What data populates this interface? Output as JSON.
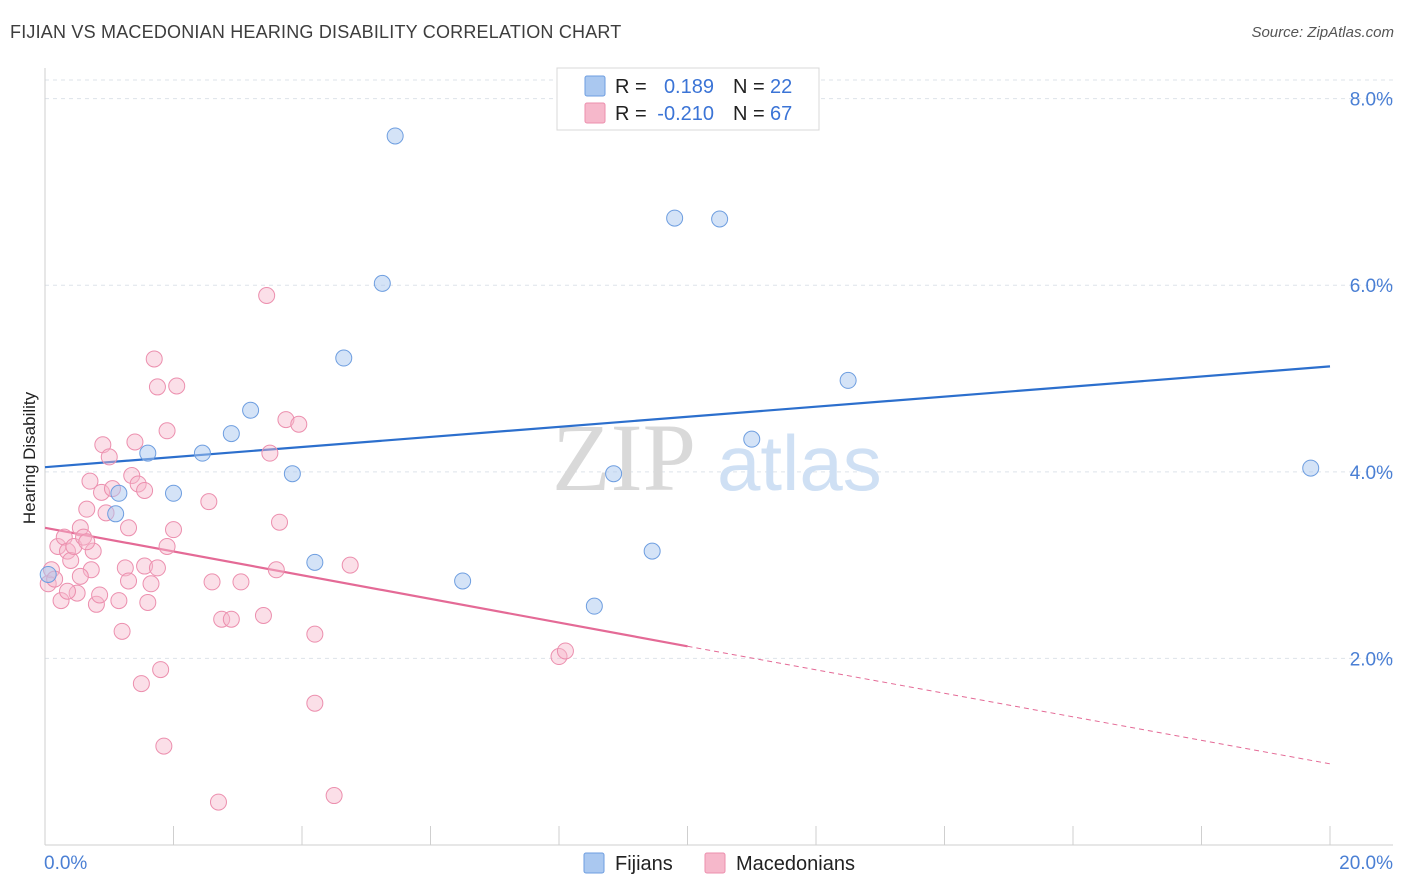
{
  "title": "FIJIAN VS MACEDONIAN HEARING DISABILITY CORRELATION CHART",
  "source": "Source: ZipAtlas.com",
  "watermark": {
    "zip": "ZIP",
    "atlas": "atlas"
  },
  "colors": {
    "fijians_fill": "#aac8f0",
    "fijians_stroke": "#6e9ee0",
    "fijians_line": "#2c6fcd",
    "macedonians_fill": "#f6b8cb",
    "macedonians_stroke": "#ec8fae",
    "macedonians_line": "#e46a96",
    "grid": "#dde3ea",
    "axis_text": "#4a7fd4"
  },
  "legend": {
    "rows": [
      {
        "r_label": "R =",
        "r_value": "0.189",
        "n_label": "N =",
        "n_value": "22"
      },
      {
        "r_label": "R =",
        "r_value": "-0.210",
        "n_label": "N =",
        "n_value": "67"
      }
    ]
  },
  "chart_data": {
    "type": "scatter",
    "ylabel": "Hearing Disability",
    "xlabel": "",
    "xlim": [
      0,
      20
    ],
    "ylim": [
      0,
      8.2
    ],
    "x_tick_labels": [
      "0.0%",
      "20.0%"
    ],
    "y_ticks": [
      2,
      4,
      6,
      8
    ],
    "y_tick_labels": [
      "2.0%",
      "4.0%",
      "6.0%",
      "8.0%"
    ],
    "grid": "horizontal dashed",
    "legend_position": "top-center",
    "series": [
      {
        "name": "Fijians",
        "r": 0.189,
        "n": 22,
        "trend": {
          "x": [
            0,
            20
          ],
          "y": [
            4.05,
            5.13
          ],
          "style": "solid"
        },
        "points": [
          [
            0.05,
            2.9
          ],
          [
            1.1,
            3.55
          ],
          [
            1.15,
            3.77
          ],
          [
            1.6,
            4.2
          ],
          [
            2.0,
            3.77
          ],
          [
            2.45,
            4.2
          ],
          [
            2.9,
            4.41
          ],
          [
            3.2,
            4.66
          ],
          [
            3.85,
            3.98
          ],
          [
            4.2,
            3.03
          ],
          [
            4.65,
            5.22
          ],
          [
            5.25,
            6.02
          ],
          [
            5.45,
            7.6
          ],
          [
            6.5,
            2.83
          ],
          [
            8.55,
            2.56
          ],
          [
            8.85,
            3.98
          ],
          [
            9.45,
            3.15
          ],
          [
            9.8,
            6.72
          ],
          [
            10.5,
            6.71
          ],
          [
            11.0,
            4.35
          ],
          [
            12.5,
            4.98
          ],
          [
            19.7,
            4.04
          ]
        ]
      },
      {
        "name": "Macedonians",
        "r": -0.21,
        "n": 67,
        "trend": {
          "x": [
            0,
            10.0
          ],
          "y": [
            3.4,
            2.13
          ],
          "style": "solid",
          "extension": {
            "x": [
              10.0,
              20
            ],
            "y": [
              2.13,
              0.87
            ],
            "style": "dashed"
          }
        },
        "points": [
          [
            0.05,
            2.8
          ],
          [
            0.1,
            2.95
          ],
          [
            0.2,
            3.2
          ],
          [
            0.3,
            3.3
          ],
          [
            0.35,
            3.15
          ],
          [
            0.4,
            3.05
          ],
          [
            0.45,
            3.2
          ],
          [
            0.5,
            2.7
          ],
          [
            0.55,
            3.4
          ],
          [
            0.6,
            3.3
          ],
          [
            0.65,
            3.6
          ],
          [
            0.7,
            3.9
          ],
          [
            0.72,
            2.95
          ],
          [
            0.75,
            3.15
          ],
          [
            0.8,
            2.58
          ],
          [
            0.85,
            2.68
          ],
          [
            0.88,
            3.78
          ],
          [
            0.9,
            4.29
          ],
          [
            0.95,
            3.56
          ],
          [
            1.0,
            4.16
          ],
          [
            1.05,
            3.82
          ],
          [
            1.15,
            2.62
          ],
          [
            1.2,
            2.29
          ],
          [
            1.25,
            2.97
          ],
          [
            1.3,
            3.4
          ],
          [
            1.3,
            2.83
          ],
          [
            1.35,
            3.96
          ],
          [
            1.4,
            4.32
          ],
          [
            1.45,
            3.87
          ],
          [
            1.5,
            1.73
          ],
          [
            1.55,
            3.8
          ],
          [
            1.55,
            2.99
          ],
          [
            1.6,
            2.6
          ],
          [
            1.65,
            2.8
          ],
          [
            1.7,
            5.21
          ],
          [
            1.75,
            4.91
          ],
          [
            1.75,
            2.97
          ],
          [
            1.8,
            1.88
          ],
          [
            1.85,
            1.06
          ],
          [
            1.9,
            3.2
          ],
          [
            1.9,
            4.44
          ],
          [
            2.0,
            3.38
          ],
          [
            2.05,
            4.92
          ],
          [
            2.55,
            3.68
          ],
          [
            2.6,
            2.82
          ],
          [
            2.7,
            0.46
          ],
          [
            2.75,
            2.42
          ],
          [
            2.9,
            2.42
          ],
          [
            3.05,
            2.82
          ],
          [
            3.4,
            2.46
          ],
          [
            3.45,
            5.89
          ],
          [
            3.5,
            4.2
          ],
          [
            3.6,
            2.95
          ],
          [
            3.65,
            3.46
          ],
          [
            3.75,
            4.56
          ],
          [
            3.95,
            4.51
          ],
          [
            4.2,
            2.26
          ],
          [
            4.2,
            1.52
          ],
          [
            4.5,
            0.53
          ],
          [
            4.75,
            3.0
          ],
          [
            8.0,
            2.02
          ],
          [
            8.1,
            2.08
          ],
          [
            0.15,
            2.85
          ],
          [
            0.25,
            2.62
          ],
          [
            0.55,
            2.88
          ],
          [
            0.65,
            3.25
          ],
          [
            0.35,
            2.72
          ]
        ]
      }
    ]
  },
  "bottom_legend": [
    {
      "label": "Fijians"
    },
    {
      "label": "Macedonians"
    }
  ]
}
